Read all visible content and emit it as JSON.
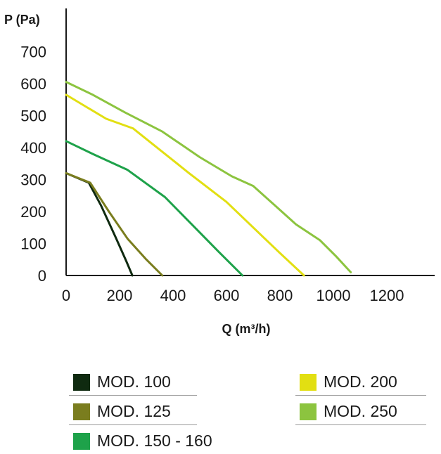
{
  "chart_data": {
    "type": "line",
    "title": "",
    "xlabel": "Q (m³/h)",
    "ylabel": "P (Pa)",
    "xlim": [
      0,
      1300
    ],
    "ylim": [
      0,
      780
    ],
    "x_ticks": [
      0,
      200,
      400,
      600,
      800,
      1000,
      1200
    ],
    "y_ticks": [
      0,
      100,
      200,
      300,
      400,
      500,
      600,
      700
    ],
    "grid": false,
    "legend_position": "bottom",
    "series": [
      {
        "name": "MOD. 100",
        "color": "#0f2a10",
        "points": [
          [
            0,
            320
          ],
          [
            85,
            290
          ],
          [
            130,
            220
          ],
          [
            185,
            120
          ],
          [
            225,
            45
          ],
          [
            248,
            0
          ]
        ]
      },
      {
        "name": "MOD. 125",
        "color": "#7a7d1e",
        "points": [
          [
            0,
            320
          ],
          [
            90,
            290
          ],
          [
            160,
            200
          ],
          [
            230,
            115
          ],
          [
            300,
            50
          ],
          [
            360,
            0
          ]
        ]
      },
      {
        "name": "MOD. 150 - 160",
        "color": "#1ea24a",
        "points": [
          [
            0,
            420
          ],
          [
            100,
            380
          ],
          [
            230,
            330
          ],
          [
            370,
            245
          ],
          [
            470,
            160
          ],
          [
            570,
            75
          ],
          [
            660,
            0
          ]
        ]
      },
      {
        "name": "MOD. 200",
        "color": "#e2df12",
        "points": [
          [
            0,
            565
          ],
          [
            80,
            525
          ],
          [
            150,
            490
          ],
          [
            250,
            460
          ],
          [
            340,
            400
          ],
          [
            460,
            320
          ],
          [
            600,
            230
          ],
          [
            700,
            150
          ],
          [
            800,
            70
          ],
          [
            890,
            0
          ]
        ]
      },
      {
        "name": "MOD. 250",
        "color": "#8cc43f",
        "points": [
          [
            0,
            605
          ],
          [
            100,
            565
          ],
          [
            220,
            510
          ],
          [
            360,
            450
          ],
          [
            500,
            370
          ],
          [
            620,
            310
          ],
          [
            700,
            280
          ],
          [
            780,
            220
          ],
          [
            860,
            160
          ],
          [
            950,
            110
          ],
          [
            1010,
            60
          ],
          [
            1065,
            10
          ]
        ]
      }
    ]
  }
}
